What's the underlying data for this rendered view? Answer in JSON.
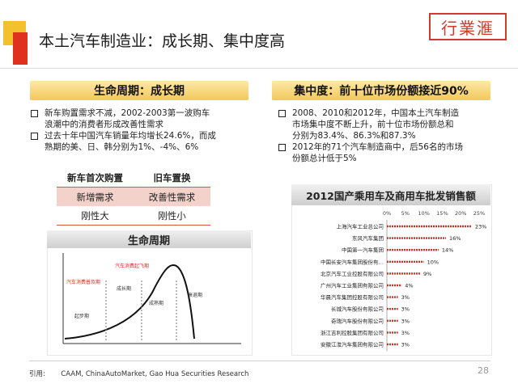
{
  "slide": {
    "title": "本土汽车制造业：成长期、集中度高",
    "logo_text": "行業滙",
    "page_number": "28",
    "source_label": "引用:",
    "source_text": "CAAM, ChinaAutoMarket, Gao Hua Securities Research"
  },
  "left": {
    "banner": "生命周期：成长期",
    "bullets": [
      [
        "新车购置需求不减，2002-2003第一波购车",
        "浪潮中的消费者形成改善性需求"
      ],
      [
        "过去十年中国汽车销量年均增长24.6%，而成",
        "熟期的美、日、韩分别为1%、-4%、6%"
      ]
    ],
    "table": {
      "headers": [
        "新车首次购置",
        "旧车置换"
      ],
      "rows": [
        [
          "新增需求",
          "改善性需求"
        ],
        [
          "刚性大",
          "刚性小"
        ]
      ]
    },
    "lifecycle": {
      "title": "生命周期",
      "labels": [
        "汽车消费普及期",
        "汽车消费起飞期",
        "起步期",
        "成长期",
        "成熟期",
        "衰退期"
      ]
    }
  },
  "right": {
    "banner": "集中度：前十位市场份额接近90%",
    "bullets": [
      [
        "2008、2010和2012年，中国本土汽车制造",
        "市场集中度不断上升，前十位市场份额总和",
        "分别为83.4%、86.3%和87.3%"
      ],
      [
        "2012年的71个汽车制造商中，后56名的市场",
        "份额总计低于5%"
      ]
    ]
  },
  "chart_data": {
    "type": "bar",
    "title": "2012国产乘用车及商用车批发销售额",
    "categories": [
      "上海汽车工业总公司",
      "东风汽车集团",
      "中国第一汽车集团",
      "中国长安汽车集团股份有…",
      "北京汽车工业控股有限公司",
      "广州汽车工业集团有限公司",
      "华晨汽车集团控股有限公司",
      "长城汽车股份有限公司",
      "奇瑞汽车股份有限公司",
      "浙江吉利控股集团有限公司",
      "安徽江淮汽车集团有限公司"
    ],
    "values": [
      23,
      16,
      14,
      10,
      9,
      4,
      3,
      3,
      3,
      3,
      3
    ],
    "value_labels": [
      "23%",
      "16%",
      "14%",
      "10%",
      "9%",
      "4%",
      "3%",
      "3%",
      "3%",
      "3%",
      "3%"
    ],
    "xlim": [
      0,
      25
    ],
    "x_ticks": [
      "0%",
      "5%",
      "10%",
      "15%",
      "20%",
      "25%"
    ],
    "bar_color": "#c0392b"
  }
}
